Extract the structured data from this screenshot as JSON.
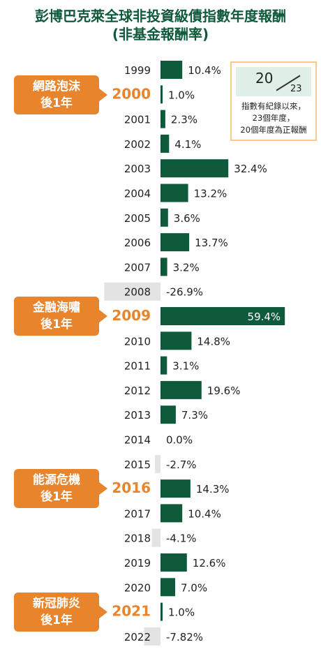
{
  "title": {
    "line1": "彭博巴克萊全球非投資級債指數年度報酬",
    "line2": "(非基金報酬率)"
  },
  "colors": {
    "positive": "#0f5a3b",
    "negative": "#e3e3e3",
    "highlight_year": "#e8842c",
    "callout": "#e8842c",
    "text": "#222222"
  },
  "chart_data": {
    "type": "bar",
    "orientation": "horizontal",
    "categories": [
      "1999",
      "2000",
      "2001",
      "2002",
      "2003",
      "2004",
      "2005",
      "2006",
      "2007",
      "2008",
      "2009",
      "2010",
      "2011",
      "2012",
      "2013",
      "2014",
      "2015",
      "2016",
      "2017",
      "2018",
      "2019",
      "2020",
      "2021",
      "2022"
    ],
    "values": [
      10.4,
      1.0,
      2.3,
      4.1,
      32.4,
      13.2,
      3.6,
      13.7,
      3.2,
      -26.9,
      59.4,
      14.8,
      3.1,
      19.6,
      7.3,
      0.0,
      -2.7,
      14.3,
      10.4,
      -4.1,
      12.6,
      7.0,
      1.0,
      -7.82
    ],
    "labels": [
      "10.4%",
      "1.0%",
      "2.3%",
      "4.1%",
      "32.4%",
      "13.2%",
      "3.6%",
      "13.7%",
      "3.2%",
      "-26.9%",
      "59.4%",
      "14.8%",
      "3.1%",
      "19.6%",
      "7.3%",
      "0.0%",
      "-2.7%",
      "14.3%",
      "10.4%",
      "-4.1%",
      "12.6%",
      "7.0%",
      "1.0%",
      "-7.82%"
    ],
    "highlighted_years": [
      "2000",
      "2009",
      "2016",
      "2021"
    ],
    "title": "彭博巴克萊全球非投資級債指數年度報酬",
    "xlabel": "",
    "ylabel": "",
    "grid": false
  },
  "callouts": [
    {
      "line1": "網路泡沫",
      "line2": "後1年",
      "year": "2000"
    },
    {
      "line1": "金融海嘯",
      "line2": "後1年",
      "year": "2009"
    },
    {
      "line1": "能源危機",
      "line2": "後1年",
      "year": "2016"
    },
    {
      "line1": "新冠肺炎",
      "line2": "後1年",
      "year": "2021"
    }
  ],
  "infobox": {
    "numerator": "20",
    "denominator": "23",
    "line1": "指數有紀錄以來，",
    "line2": "23個年度，",
    "line3": "20個年度為正報酬"
  }
}
